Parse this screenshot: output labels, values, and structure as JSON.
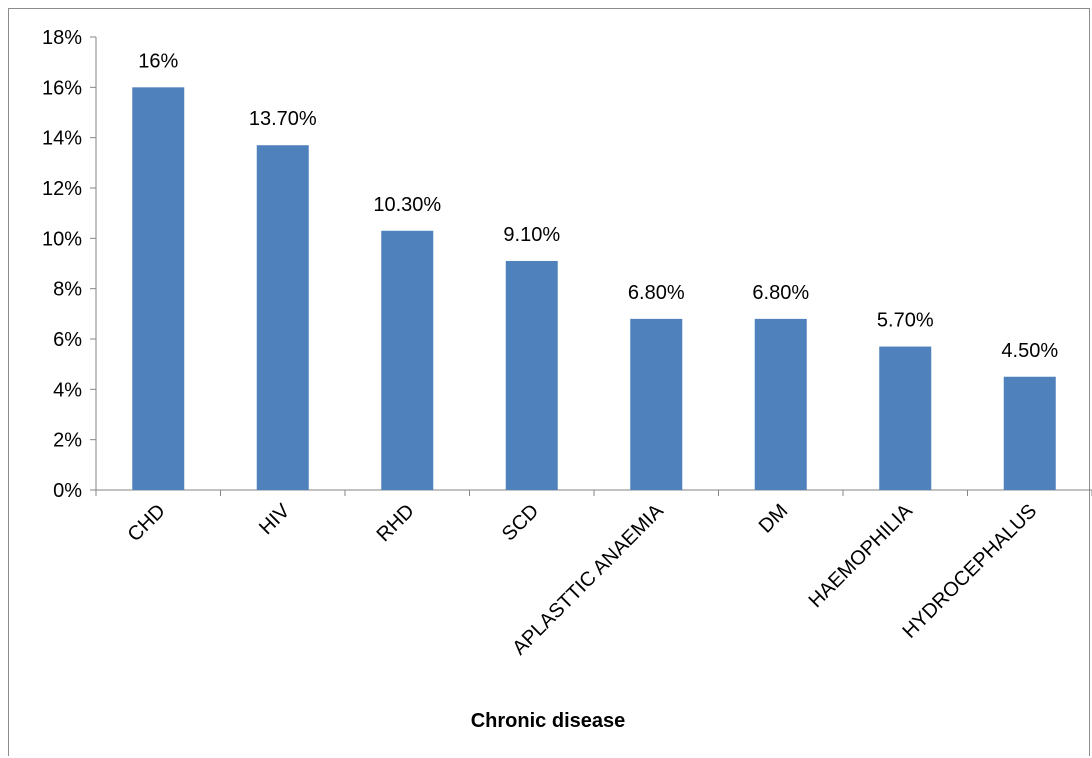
{
  "chart_data": {
    "type": "bar",
    "categories": [
      "CHD",
      "HIV",
      "RHD",
      "SCD",
      "APLASTTIC ANAEMIA",
      "DM",
      "HAEMOPHILIA",
      "HYDROCEPHALUS"
    ],
    "values": [
      16,
      13.7,
      10.3,
      9.1,
      6.8,
      6.8,
      5.7,
      4.5
    ],
    "data_labels": [
      "16%",
      "13.70%",
      "10.30%",
      "9.10%",
      "6.80%",
      "6.80%",
      "5.70%",
      "4.50%"
    ],
    "y_ticks": [
      "0%",
      "2%",
      "4%",
      "6%",
      "8%",
      "10%",
      "12%",
      "14%",
      "16%",
      "18%"
    ],
    "title": "",
    "xlabel": "Chronic disease",
    "ylabel": "",
    "ylim": [
      0,
      18
    ],
    "grid": false,
    "legend": "none",
    "bar_color": "#4F81BD",
    "axis_color": "#868686"
  }
}
